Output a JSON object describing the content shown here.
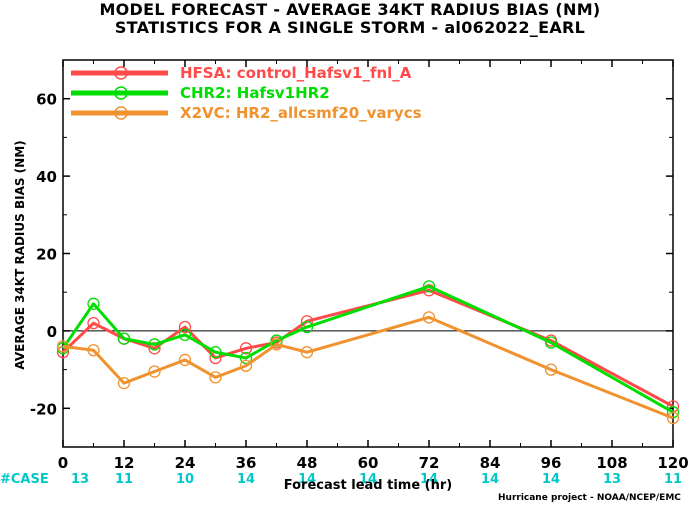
{
  "chart_data": {
    "type": "line",
    "title": "MODEL FORECAST - AVERAGE 34KT RADIUS BIAS (NM)",
    "subtitle": "STATISTICS FOR A SINGLE STORM - al062022_EARL",
    "xlabel": "Forecast lead time (hr)",
    "ylabel": "AVERAGE 34KT RADIUS BIAS (NM)",
    "xlim": [
      0,
      120
    ],
    "ylim": [
      -30,
      70
    ],
    "x_ticks": [
      0,
      12,
      24,
      36,
      48,
      60,
      72,
      84,
      96,
      108,
      120
    ],
    "y_ticks": [
      -20,
      0,
      20,
      40,
      60
    ],
    "zero_line": true,
    "legend_position": "top-left",
    "series": [
      {
        "name": "HFSA: control_Hafsv1_fnl_A",
        "color": "#ff4a4a",
        "x": [
          0,
          6,
          12,
          18,
          24,
          30,
          36,
          42,
          48,
          72,
          96,
          120
        ],
        "y": [
          -5.5,
          2.0,
          -2.0,
          -4.5,
          1.0,
          -7.0,
          -4.5,
          -3.0,
          2.5,
          10.5,
          -2.5,
          -19.5
        ]
      },
      {
        "name": "CHR2: Hafsv1HR2",
        "color": "#00dd00",
        "x": [
          0,
          6,
          12,
          18,
          24,
          30,
          36,
          42,
          48,
          72,
          96,
          120
        ],
        "y": [
          -4.5,
          7.0,
          -2.0,
          -3.5,
          -1.0,
          -5.5,
          -7.0,
          -2.5,
          1.0,
          11.5,
          -3.0,
          -21.0
        ]
      },
      {
        "name": "X2VC: HR2_allcsmf20_varycs",
        "color": "#f0922e",
        "x": [
          0,
          6,
          12,
          18,
          24,
          30,
          36,
          42,
          48,
          72,
          96,
          120
        ],
        "y": [
          -4.0,
          -5.0,
          -13.5,
          -10.5,
          -7.5,
          -12.0,
          -9.0,
          -3.5,
          -5.5,
          3.5,
          -10.0,
          -22.5
        ]
      }
    ],
    "case_label": "#CASE",
    "case_label_color": "#00c8c8",
    "case_x": [
      0,
      12,
      24,
      36,
      48,
      60,
      72,
      84,
      96,
      108,
      120
    ],
    "case_counts": [
      "13",
      "11",
      "10",
      "14",
      "14",
      "14",
      "14",
      "14",
      "14",
      "13",
      "11"
    ],
    "credit": "Hurricane project - NOAA/NCEP/EMC"
  }
}
